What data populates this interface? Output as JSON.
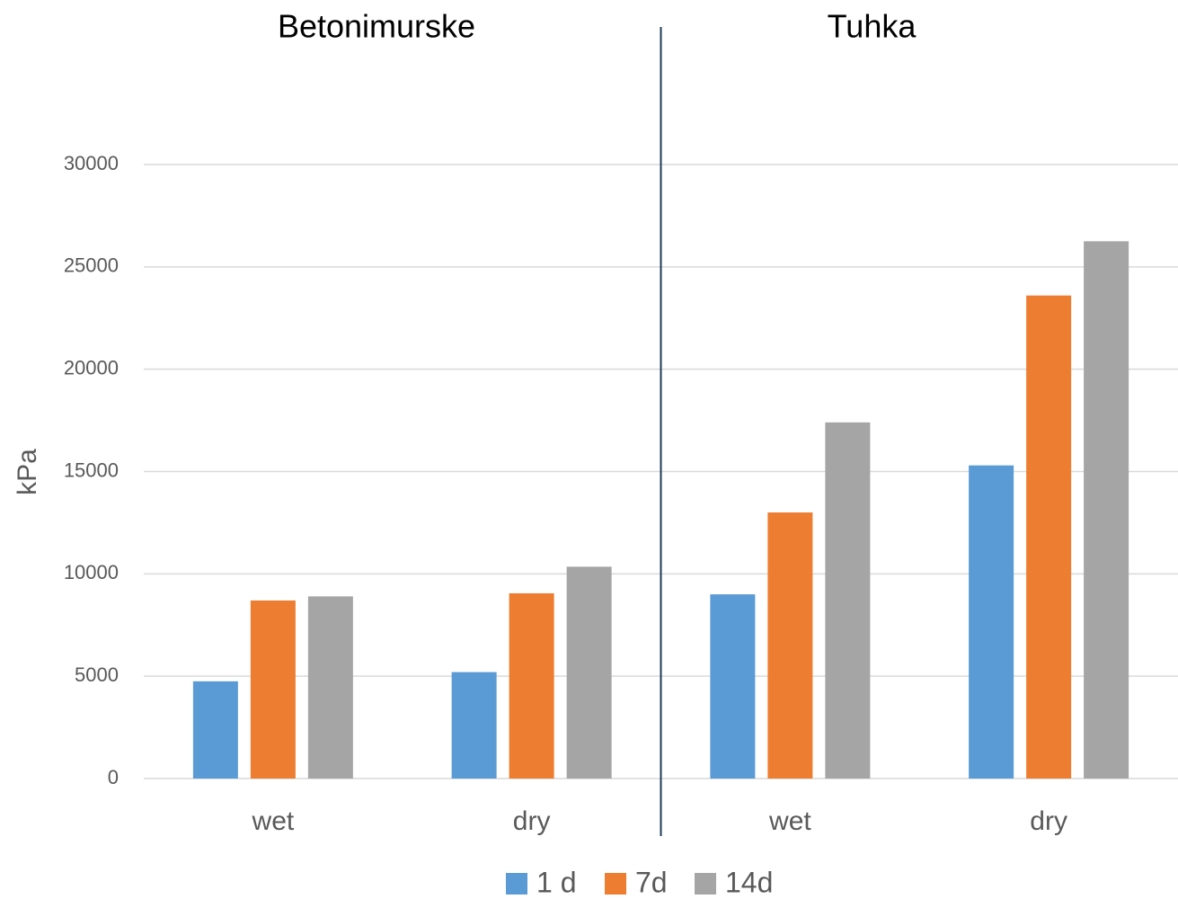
{
  "chart_data": {
    "type": "bar",
    "annotations": [
      "Betonimurske",
      "Tuhka"
    ],
    "ylabel": "kPa",
    "categories": [
      "wet",
      "dry",
      "wet",
      "dry"
    ],
    "series": [
      {
        "name": "1 d",
        "color": "#5b9bd5",
        "values": [
          4750,
          5200,
          9000,
          15300
        ]
      },
      {
        "name": "7d",
        "color": "#ed7d31",
        "values": [
          8700,
          9050,
          13000,
          23600
        ]
      },
      {
        "name": "14d",
        "color": "#a5a5a5",
        "values": [
          8900,
          10350,
          17400,
          26250
        ]
      }
    ],
    "ylim": [
      0,
      30000
    ],
    "yticks": [
      0,
      5000,
      10000,
      15000,
      20000,
      25000,
      30000
    ],
    "grid": true,
    "legend": "bottom"
  }
}
